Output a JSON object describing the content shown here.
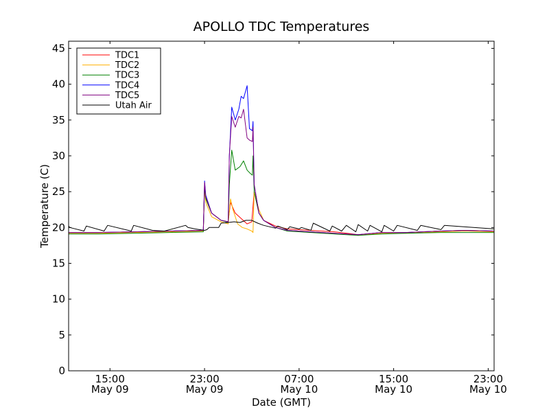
{
  "chart_data": {
    "type": "line",
    "title": "APOLLO TDC Temperatures",
    "xlabel": "Date (GMT)",
    "ylabel": "Temperature (C)",
    "xlim": [
      11.5,
      47.5
    ],
    "ylim": [
      0,
      46
    ],
    "x_unit": "hours since 00:00 GMT May 09",
    "yticks": [
      0,
      5,
      10,
      15,
      20,
      25,
      30,
      35,
      40,
      45
    ],
    "xticks": [
      {
        "value": 15,
        "time": "15:00",
        "date": "May 09"
      },
      {
        "value": 23,
        "time": "23:00",
        "date": "May 09"
      },
      {
        "value": 31,
        "time": "07:00",
        "date": "May 10"
      },
      {
        "value": 39,
        "time": "15:00",
        "date": "May 10"
      },
      {
        "value": 47,
        "time": "23:00",
        "date": "May 10"
      }
    ],
    "legend_position": "top-left",
    "series": [
      {
        "name": "TDC1",
        "color": "#ff0000",
        "x": [
          11.5,
          14,
          17,
          20,
          22.9,
          23.0,
          23.1,
          23.6,
          24.4,
          25,
          25.2,
          25.6,
          26.6,
          27,
          27.2,
          27.6,
          28,
          29,
          30,
          32,
          34,
          36,
          38,
          40,
          43,
          45,
          47.5
        ],
        "y": [
          19.3,
          19.3,
          19.4,
          19.5,
          19.6,
          26.0,
          24.0,
          22.0,
          21.0,
          20.8,
          23.5,
          22.0,
          20.5,
          20.8,
          25.0,
          22.0,
          21.0,
          20.2,
          19.8,
          19.6,
          19.4,
          19.0,
          19.3,
          19.3,
          19.5,
          19.6,
          19.5
        ]
      },
      {
        "name": "TDC2",
        "color": "#ffb000",
        "x": [
          11.5,
          14,
          17,
          20,
          22.9,
          23.0,
          23.1,
          23.6,
          24.4,
          25,
          25.2,
          25.4,
          25.8,
          26.2,
          26.6,
          27,
          27.1,
          27.2,
          27.6,
          28,
          29,
          30,
          32,
          34,
          36,
          38,
          40,
          43,
          45,
          47.5
        ],
        "y": [
          19.2,
          19.2,
          19.3,
          19.4,
          19.5,
          25.5,
          23.5,
          21.5,
          20.8,
          20.5,
          24.0,
          22.5,
          20.5,
          20.0,
          19.8,
          19.5,
          19.3,
          25.0,
          22.5,
          21.0,
          20.0,
          19.6,
          19.4,
          19.2,
          18.9,
          19.2,
          19.2,
          19.4,
          19.5,
          19.4
        ]
      },
      {
        "name": "TDC3",
        "color": "#008000",
        "x": [
          11.5,
          14,
          17,
          20,
          22.9,
          23.0,
          23.1,
          23.6,
          24.4,
          25,
          25.1,
          25.3,
          25.6,
          26.0,
          26.3,
          26.6,
          26.9,
          27.05,
          27.1,
          27.2,
          27.6,
          28,
          29,
          30,
          32,
          34,
          36,
          38,
          40,
          43,
          45,
          47.5
        ],
        "y": [
          19.1,
          19.1,
          19.2,
          19.3,
          19.4,
          26.0,
          24.0,
          22.0,
          21.0,
          20.7,
          26.0,
          30.8,
          28.0,
          28.5,
          29.3,
          28.0,
          27.5,
          27.3,
          30.0,
          25.0,
          22.0,
          21.0,
          20.0,
          19.5,
          19.3,
          19.1,
          18.9,
          19.1,
          19.2,
          19.3,
          19.3,
          19.3
        ]
      },
      {
        "name": "TDC4",
        "color": "#0000ff",
        "x": [
          11.5,
          14,
          17,
          20,
          22.9,
          23.0,
          23.1,
          23.6,
          24.4,
          25,
          25.1,
          25.3,
          25.6,
          25.9,
          26.1,
          26.3,
          26.6,
          26.8,
          27.05,
          27.1,
          27.2,
          27.6,
          28,
          29,
          30,
          32,
          34,
          36,
          38,
          40,
          43,
          45,
          47.5
        ],
        "y": [
          19.3,
          19.3,
          19.4,
          19.5,
          19.6,
          26.5,
          24.5,
          22.0,
          21.0,
          20.8,
          30.0,
          36.8,
          35.0,
          36.5,
          38.3,
          38.0,
          39.8,
          33.8,
          33.5,
          34.8,
          26.0,
          22.0,
          21.0,
          20.0,
          19.6,
          19.4,
          19.2,
          19.0,
          19.3,
          19.3,
          19.5,
          19.6,
          19.5
        ]
      },
      {
        "name": "TDC5",
        "color": "#800080",
        "x": [
          11.5,
          14,
          17,
          20,
          22.9,
          23.0,
          23.1,
          23.6,
          24.4,
          25,
          25.1,
          25.3,
          25.6,
          25.9,
          26.1,
          26.3,
          26.6,
          26.8,
          27.05,
          27.1,
          27.2,
          27.6,
          28,
          29,
          30,
          32,
          34,
          36,
          38,
          40,
          43,
          45,
          47.5
        ],
        "y": [
          19.3,
          19.3,
          19.4,
          19.5,
          19.6,
          26.3,
          24.3,
          22.0,
          21.0,
          20.8,
          30.0,
          35.5,
          34.0,
          35.5,
          35.3,
          36.5,
          32.5,
          32.2,
          32.0,
          34.0,
          26.0,
          22.0,
          21.0,
          20.0,
          19.6,
          19.4,
          19.2,
          19.0,
          19.3,
          19.3,
          19.5,
          19.6,
          19.5
        ]
      },
      {
        "name": "Utah Air",
        "color": "#000000",
        "x": [
          11.5,
          11.6,
          12.8,
          13.0,
          14.5,
          14.8,
          16.8,
          17.0,
          18.6,
          19.6,
          21.4,
          21.6,
          22.2,
          23.0,
          23.2,
          23.4,
          24.2,
          24.4,
          25.0,
          25.5,
          26.0,
          26.5,
          27.0,
          27.5,
          28.0,
          29.0,
          29.2,
          30.0,
          30.2,
          31.0,
          31.2,
          32.0,
          32.2,
          33.6,
          33.8,
          34.6,
          35.0,
          35.8,
          36.0,
          36.8,
          37.0,
          38.0,
          38.2,
          39.0,
          39.3,
          41.0,
          41.3,
          43.0,
          43.3,
          47.5
        ],
        "y": [
          20.2,
          20.0,
          19.5,
          20.2,
          19.5,
          20.3,
          19.5,
          20.3,
          19.6,
          19.5,
          20.3,
          20.0,
          19.8,
          19.6,
          19.7,
          20.0,
          20.0,
          20.6,
          20.7,
          20.8,
          20.7,
          21.0,
          21.0,
          20.6,
          20.3,
          19.9,
          20.2,
          19.7,
          20.1,
          19.8,
          20.0,
          19.6,
          20.6,
          19.5,
          20.2,
          19.5,
          20.3,
          19.4,
          20.4,
          19.5,
          20.3,
          19.4,
          20.3,
          19.5,
          20.3,
          19.6,
          20.3,
          19.7,
          20.3,
          19.8
        ]
      }
    ]
  }
}
